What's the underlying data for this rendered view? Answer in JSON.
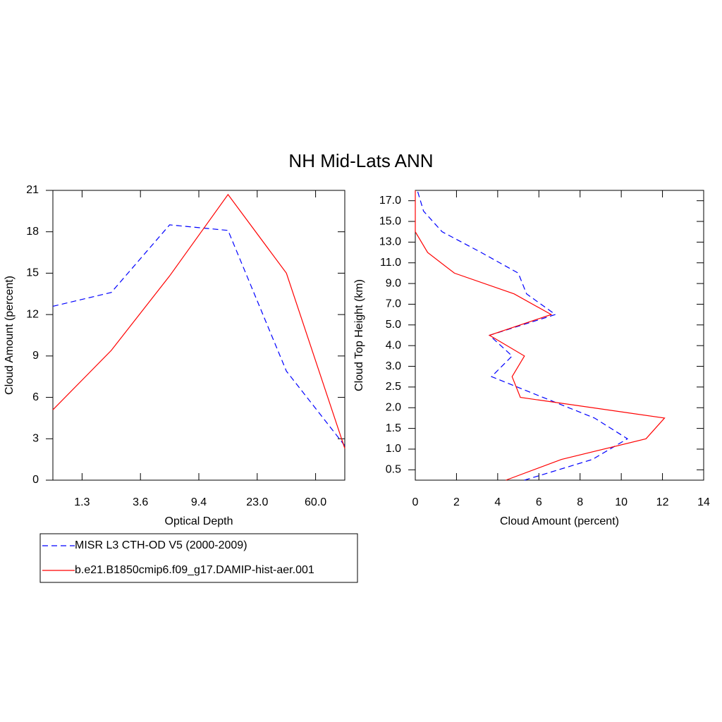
{
  "title": "NH Mid-Lats ANN",
  "chart_data": [
    {
      "type": "line",
      "xlabel": "Optical Depth",
      "ylabel": "Cloud Amount (percent)",
      "x": [
        0,
        1,
        2,
        3,
        4,
        5
      ],
      "xlim": [
        0,
        5
      ],
      "xticks": [
        {
          "value": 0.5,
          "label": "1.3"
        },
        {
          "value": 1.5,
          "label": "3.6"
        },
        {
          "value": 2.5,
          "label": "9.4"
        },
        {
          "value": 3.5,
          "label": "23.0"
        },
        {
          "value": 4.5,
          "label": "60.0"
        }
      ],
      "ylim": [
        0,
        21
      ],
      "yticks": [
        0,
        3,
        6,
        9,
        12,
        15,
        18,
        21
      ],
      "series": [
        {
          "name": "MISR L3 CTH-OD V5 (2000-2009)",
          "color": "#0000ff",
          "dash": true,
          "values": [
            12.6,
            13.6,
            18.5,
            18.1,
            7.9,
            2.5
          ]
        },
        {
          "name": "b.e21.B1850cmip6.f09_g17.DAMIP-hist-aer.001",
          "color": "#ff0000",
          "dash": false,
          "values": [
            5.1,
            9.4,
            14.8,
            20.7,
            15.0,
            2.3
          ]
        }
      ]
    },
    {
      "type": "line",
      "orientation": "horizontal",
      "xlabel": "Cloud Amount (percent)",
      "ylabel": "Cloud Top Height (km)",
      "xlim": [
        0,
        14
      ],
      "xticks": [
        0,
        2,
        4,
        6,
        8,
        10,
        12,
        14
      ],
      "y": [
        -0.5,
        0.5,
        1.5,
        2.5,
        3.5,
        4.5,
        5.5,
        6.5,
        7.5,
        8.5,
        9.5,
        10.5,
        11.5,
        12.5,
        13.5
      ],
      "ylim": [
        -0.5,
        13.5
      ],
      "yticks": [
        {
          "value": 0,
          "label": "0.5"
        },
        {
          "value": 1,
          "label": "1.0"
        },
        {
          "value": 2,
          "label": "1.5"
        },
        {
          "value": 3,
          "label": "2.0"
        },
        {
          "value": 4,
          "label": "2.5"
        },
        {
          "value": 5,
          "label": "3.0"
        },
        {
          "value": 6,
          "label": "4.0"
        },
        {
          "value": 7,
          "label": "5.0"
        },
        {
          "value": 8,
          "label": "7.0"
        },
        {
          "value": 9,
          "label": "9.0"
        },
        {
          "value": 10,
          "label": "11.0"
        },
        {
          "value": 11,
          "label": "13.0"
        },
        {
          "value": 12,
          "label": "15.0"
        },
        {
          "value": 13,
          "label": "17.0"
        }
      ],
      "series": [
        {
          "color": "#0000ff",
          "dash": true,
          "values": [
            5.3,
            8.6,
            10.3,
            8.7,
            6.2,
            3.7,
            4.7,
            3.6,
            6.8,
            5.4,
            5.0,
            3.2,
            1.3,
            0.4,
            0.1
          ]
        },
        {
          "color": "#ff0000",
          "dash": false,
          "values": [
            4.4,
            7.1,
            11.2,
            12.1,
            5.1,
            4.7,
            5.3,
            3.6,
            6.6,
            4.8,
            1.9,
            0.6,
            0.0,
            0.0,
            0.0
          ]
        }
      ]
    }
  ]
}
